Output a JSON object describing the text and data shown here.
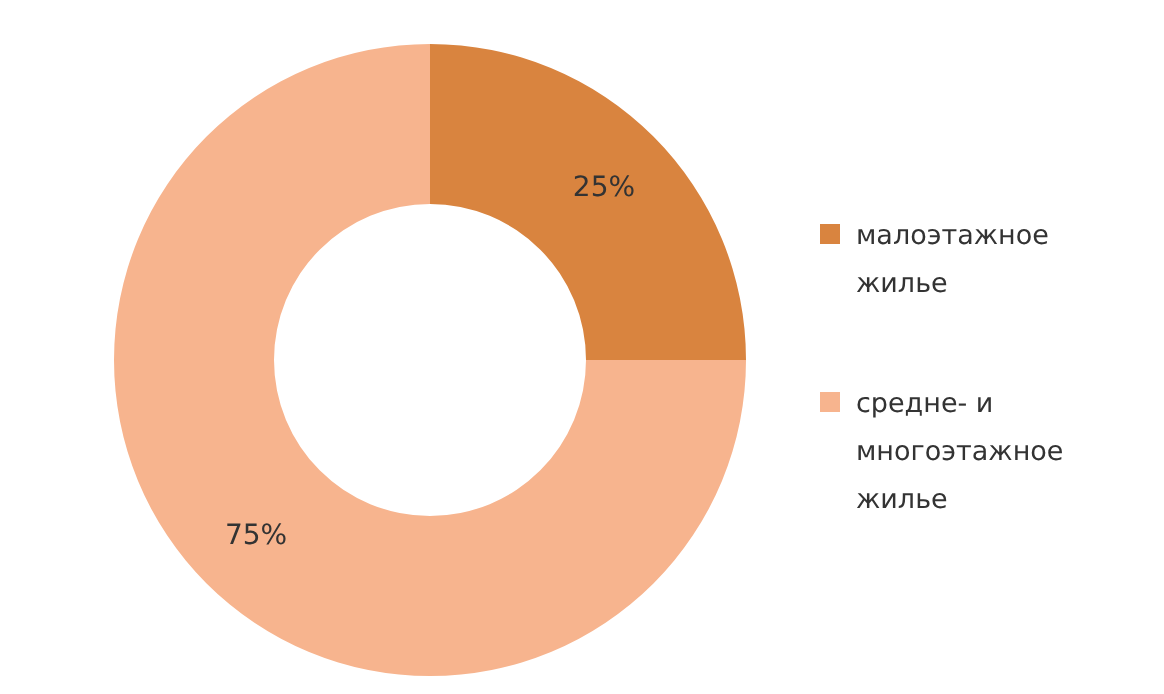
{
  "chart_data": {
    "type": "donut",
    "categories": [
      "малоэтажное жилье",
      "средне- и многоэтажное жилье"
    ],
    "values": [
      25,
      75
    ],
    "colors": [
      "#d9843f",
      "#f7b48e"
    ],
    "value_labels": [
      "25%",
      "75%"
    ],
    "legend": "right"
  }
}
